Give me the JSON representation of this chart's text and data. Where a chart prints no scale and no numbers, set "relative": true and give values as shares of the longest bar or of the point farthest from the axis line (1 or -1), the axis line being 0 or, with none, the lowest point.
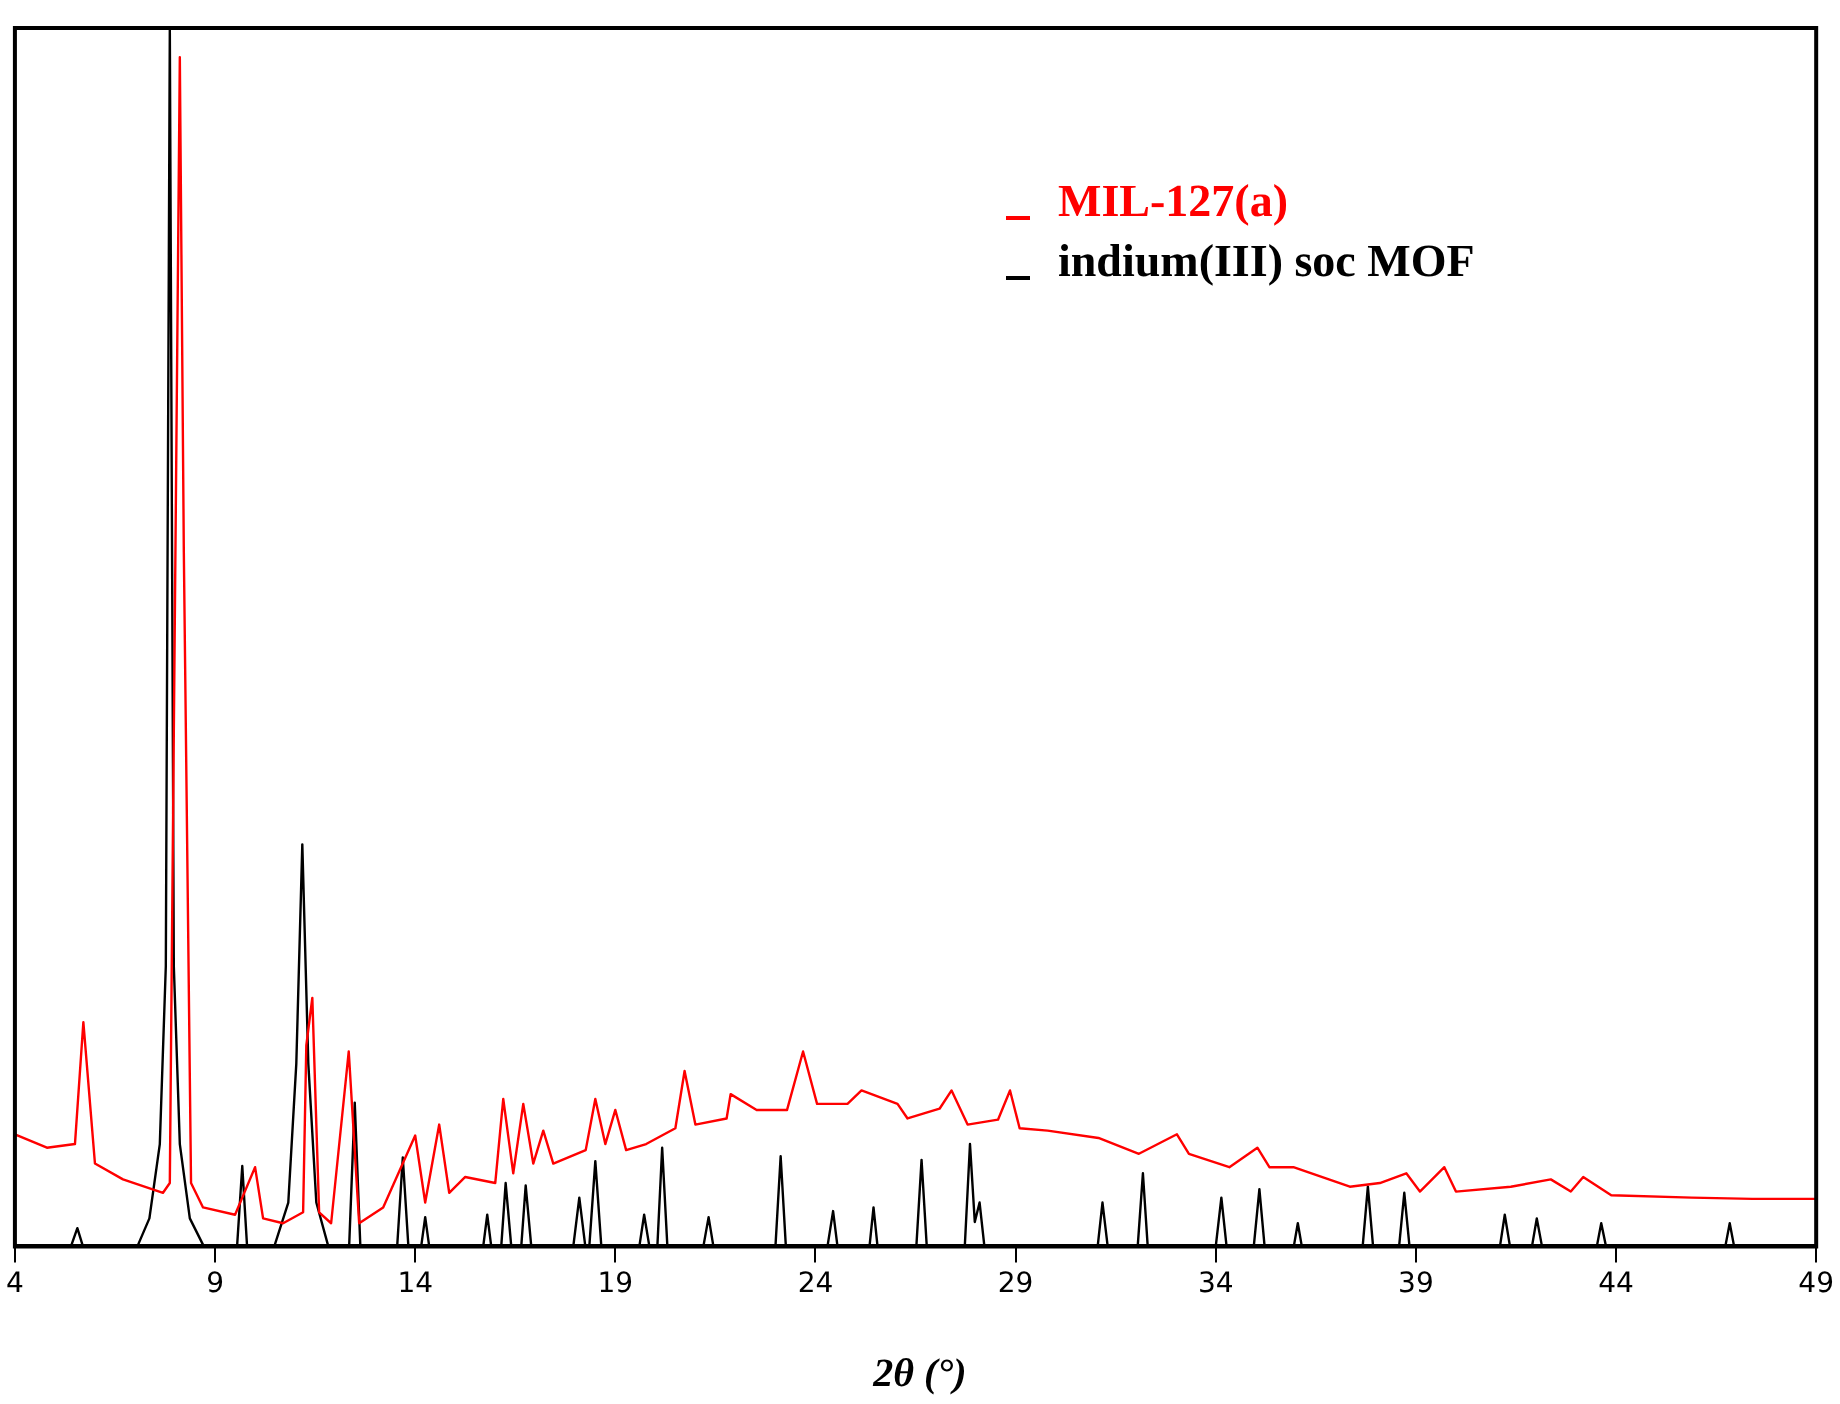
{
  "chart_data": {
    "type": "line",
    "relative": true,
    "xlabel": "2θ (°)",
    "xlim": [
      4,
      49
    ],
    "xticks": [
      4,
      9,
      14,
      19,
      24,
      29,
      34,
      39,
      44,
      49
    ],
    "grid": false,
    "legend": "top right",
    "marker": "none",
    "line_style": "solid",
    "series": [
      {
        "name": "MIL-127(a)",
        "color": "#ff0000",
        "x": [
          4.0,
          4.8,
          5.5,
          5.71,
          6.0,
          6.7,
          7.7,
          7.87,
          8.12,
          8.22,
          8.4,
          8.7,
          9.5,
          10.0,
          10.2,
          10.7,
          11.2,
          11.28,
          11.43,
          11.6,
          11.9,
          12.34,
          12.6,
          13.2,
          14.0,
          14.25,
          14.6,
          14.85,
          15.25,
          16.0,
          16.2,
          16.45,
          16.7,
          16.95,
          17.2,
          17.45,
          18.26,
          18.5,
          18.75,
          19.0,
          19.27,
          19.77,
          20.5,
          20.73,
          21.0,
          21.78,
          21.88,
          22.53,
          23.29,
          23.69,
          24.04,
          24.8,
          25.15,
          26.05,
          26.3,
          27.1,
          27.4,
          27.8,
          28.56,
          28.86,
          29.1,
          29.8,
          31.07,
          32.08,
          33.03,
          33.33,
          34.34,
          35.04,
          35.34,
          35.94,
          37.35,
          38.1,
          38.76,
          39.1,
          39.71,
          40.0,
          41.37,
          42.37,
          42.87,
          43.18,
          43.88,
          45.89,
          47.4,
          49
        ],
        "values": [
          0.092,
          0.081,
          0.084,
          0.184,
          0.068,
          0.055,
          0.044,
          0.052,
          0.976,
          0.57,
          0.052,
          0.032,
          0.026,
          0.065,
          0.023,
          0.019,
          0.028,
          0.165,
          0.204,
          0.028,
          0.019,
          0.16,
          0.019,
          0.032,
          0.091,
          0.036,
          0.1,
          0.044,
          0.057,
          0.052,
          0.121,
          0.06,
          0.117,
          0.068,
          0.095,
          0.068,
          0.079,
          0.121,
          0.084,
          0.112,
          0.079,
          0.084,
          0.097,
          0.144,
          0.1,
          0.105,
          0.125,
          0.112,
          0.112,
          0.16,
          0.117,
          0.117,
          0.128,
          0.117,
          0.105,
          0.113,
          0.128,
          0.1,
          0.104,
          0.128,
          0.097,
          0.095,
          0.089,
          0.076,
          0.092,
          0.076,
          0.065,
          0.081,
          0.065,
          0.065,
          0.049,
          0.052,
          0.06,
          0.045,
          0.065,
          0.045,
          0.049,
          0.055,
          0.045,
          0.057,
          0.042,
          0.04,
          0.039,
          0.039
        ]
      },
      {
        "name": "indium(III) soc MOF",
        "color": "#000000",
        "x": [
          4.0,
          5.4,
          5.56,
          5.7,
          7.06,
          7.36,
          7.62,
          7.77,
          7.87,
          7.97,
          8.12,
          8.37,
          8.72,
          9.55,
          9.68,
          9.8,
          10.48,
          10.83,
          11.03,
          11.18,
          11.33,
          11.53,
          11.83,
          12.35,
          12.49,
          12.63,
          13.55,
          13.69,
          13.83,
          14.15,
          14.25,
          14.35,
          15.7,
          15.8,
          15.9,
          16.15,
          16.26,
          16.4,
          16.65,
          16.76,
          16.9,
          17.95,
          18.1,
          18.25,
          18.35,
          18.5,
          18.65,
          19.6,
          19.72,
          19.85,
          20.05,
          20.17,
          20.3,
          21.2,
          21.33,
          21.45,
          23.0,
          23.13,
          23.26,
          24.3,
          24.44,
          24.55,
          25.35,
          25.45,
          25.55,
          26.52,
          26.65,
          26.78,
          27.73,
          27.86,
          27.98,
          28.1,
          28.22,
          31.05,
          31.17,
          31.3,
          32.05,
          32.18,
          32.3,
          34.0,
          34.14,
          34.27,
          34.95,
          35.09,
          35.22,
          35.95,
          36.05,
          36.15,
          37.67,
          37.8,
          37.93,
          38.58,
          38.71,
          38.84,
          41.1,
          41.22,
          41.35,
          41.9,
          42.02,
          42.15,
          43.52,
          43.63,
          43.75,
          46.73,
          46.84,
          46.95,
          49
        ],
        "values": [
          0,
          0,
          0.015,
          0,
          0,
          0.023,
          0.084,
          0.23,
          1,
          0.23,
          0.084,
          0.023,
          0,
          0,
          0.066,
          0,
          0,
          0.036,
          0.15,
          0.33,
          0.15,
          0.036,
          0,
          0,
          0.118,
          0,
          0,
          0.073,
          0,
          0,
          0.024,
          0,
          0,
          0.026,
          0,
          0,
          0.052,
          0,
          0,
          0.05,
          0,
          0,
          0.04,
          0,
          0,
          0.07,
          0,
          0,
          0.026,
          0,
          0,
          0.081,
          0,
          0,
          0.024,
          0,
          0,
          0.074,
          0,
          0,
          0.029,
          0,
          0,
          0.032,
          0,
          0,
          0.071,
          0,
          0,
          0.084,
          0.02,
          0.036,
          0,
          0,
          0.036,
          0,
          0,
          0.06,
          0,
          0,
          0.04,
          0,
          0,
          0.047,
          0,
          0,
          0.019,
          0,
          0,
          0.049,
          0,
          0,
          0.044,
          0,
          0,
          0.026,
          0,
          0,
          0.023,
          0,
          0,
          0.019,
          0,
          0,
          0.019,
          0,
          0
        ]
      }
    ]
  }
}
